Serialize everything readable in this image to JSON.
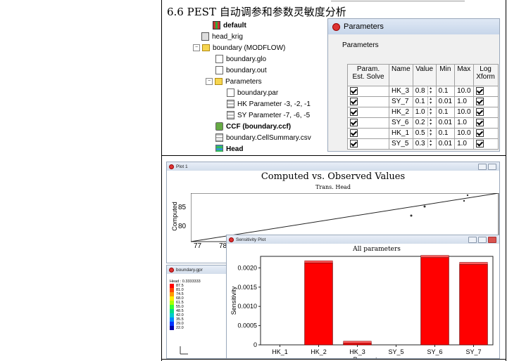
{
  "doc_heading": "6.6 PEST 自动调参和参数灵敏度分析",
  "tree": {
    "items": [
      {
        "label": "default",
        "icon": "grid-icon",
        "bold": true
      },
      {
        "label": "head_krig",
        "icon": "io-icon"
      },
      {
        "label": "boundary (MODFLOW)",
        "icon": "folder-icon"
      },
      {
        "label": "boundary.glo",
        "icon": "file-icon"
      },
      {
        "label": "boundary.out",
        "icon": "file-icon"
      },
      {
        "label": "Parameters",
        "icon": "folder-icon"
      },
      {
        "label": "boundary.par",
        "icon": "file-icon"
      },
      {
        "label": "HK Parameter -3, -2, -1",
        "icon": "grid2-icon"
      },
      {
        "label": "SY Parameter -7, -6, -5",
        "icon": "grid2-icon"
      },
      {
        "label": "CCF (boundary.ccf)",
        "icon": "gear-icon",
        "bold": true
      },
      {
        "label": "boundary.CellSummary.csv",
        "icon": "table-icon"
      },
      {
        "label": "Head",
        "icon": "head-icon",
        "bold": true
      }
    ]
  },
  "param_window": {
    "title": "Parameters",
    "group_label": "Parameters",
    "columns": [
      "Param. Est. Solve",
      "Name",
      "Value",
      "Min",
      "Max",
      "Log Xform"
    ],
    "rows": [
      {
        "name": "HK_3",
        "value": "0.8",
        "min": "0.1",
        "max": "10.0"
      },
      {
        "name": "SY_7",
        "value": "0.1",
        "min": "0.01",
        "max": "1.0"
      },
      {
        "name": "HK_2",
        "value": "1.0",
        "min": "0.1",
        "max": "10.0"
      },
      {
        "name": "SY_6",
        "value": "0.2",
        "min": "0.01",
        "max": "1.0"
      },
      {
        "name": "HK_1",
        "value": "0.5",
        "min": "0.1",
        "max": "10.0"
      },
      {
        "name": "SY_5",
        "value": "0.3",
        "min": "0.01",
        "max": "1.0"
      }
    ]
  },
  "plot1": {
    "window_title": "Plot 1",
    "title": "Computed vs. Observed Values",
    "subtitle": "Trans. Head",
    "ylabel": "Computed",
    "yticks": [
      "85",
      "80"
    ],
    "xticks": [
      "77",
      "78"
    ]
  },
  "legend_window": {
    "title": "boundary.gpr",
    "header": "Head : 0.3333333",
    "entries": [
      {
        "label": "87.5",
        "color": "#ff0000"
      },
      {
        "label": "81.0",
        "color": "#ff4400"
      },
      {
        "label": "74.5",
        "color": "#ff9900"
      },
      {
        "label": "68.0",
        "color": "#ffee00"
      },
      {
        "label": "61.5",
        "color": "#aaff00"
      },
      {
        "label": "55.0",
        "color": "#33ff33"
      },
      {
        "label": "48.5",
        "color": "#00dd88"
      },
      {
        "label": "42.0",
        "color": "#00cccc"
      },
      {
        "label": "35.5",
        "color": "#0088ff"
      },
      {
        "label": "29.0",
        "color": "#0033ff"
      },
      {
        "label": "22.0",
        "color": "#0000aa"
      }
    ]
  },
  "sens_window": {
    "title": "Sensitivity Plot"
  },
  "chart_data": {
    "type": "bar",
    "title": "All parameters",
    "xlabel": "Parameter name",
    "ylabel": "Sensitivity",
    "categories": [
      "HK_1",
      "HK_2",
      "HK_3",
      "SY_5",
      "SY_6",
      "SY_7"
    ],
    "values": [
      0.0,
      0.00213,
      4e-05,
      0.0,
      0.00227,
      0.00209
    ],
    "ylim": [
      0,
      0.0023
    ],
    "yticks": [
      "0",
      "0.0005",
      "0.0010",
      "0.0015",
      "0.0020"
    ],
    "bar_color": "#ff0000",
    "grid": false,
    "legend": "none"
  }
}
